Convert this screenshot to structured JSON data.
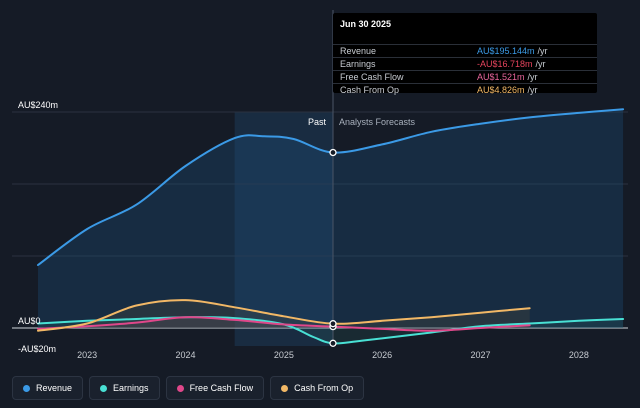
{
  "tooltip": {
    "date": "Jun 30 2025",
    "rows": [
      {
        "label": "Revenue",
        "value": "AU$195.144m",
        "unit": "/yr",
        "color": "#3b9ae6"
      },
      {
        "label": "Earnings",
        "value": "-AU$16.718m",
        "unit": "/yr",
        "color": "#e8455e"
      },
      {
        "label": "Free Cash Flow",
        "value": "AU$1.521m",
        "unit": "/yr",
        "color": "#e8659b"
      },
      {
        "label": "Cash From Op",
        "value": "AU$4.826m",
        "unit": "/yr",
        "color": "#f2b866"
      }
    ]
  },
  "legend": [
    {
      "label": "Revenue",
      "color": "#3b9ae6"
    },
    {
      "label": "Earnings",
      "color": "#49e0d4"
    },
    {
      "label": "Free Cash Flow",
      "color": "#e0478a"
    },
    {
      "label": "Cash From Op",
      "color": "#f2b866"
    }
  ],
  "chart_data": {
    "type": "line",
    "y_tick_labels": [
      "AU$240m",
      "AU$0",
      "-AU$20m"
    ],
    "ylim": [
      -20,
      240
    ],
    "xlim": [
      2022.5,
      2028.5
    ],
    "x_ticks": [
      2023,
      2024,
      2025,
      2026,
      2027,
      2028
    ],
    "past_label": "Past",
    "forecast_label": "Analysts Forecasts",
    "divider_x": 2025.5,
    "highlight_x": [
      2024.5,
      2025.5
    ],
    "series": [
      {
        "name": "Revenue",
        "color": "#3b9ae6",
        "points": [
          [
            2022.5,
            70
          ],
          [
            2023.0,
            110
          ],
          [
            2023.5,
            137
          ],
          [
            2024.0,
            180
          ],
          [
            2024.5,
            211
          ],
          [
            2024.8,
            213
          ],
          [
            2025.1,
            210
          ],
          [
            2025.5,
            195
          ],
          [
            2026.0,
            204
          ],
          [
            2026.5,
            218
          ],
          [
            2027.0,
            227
          ],
          [
            2027.5,
            234
          ],
          [
            2028.0,
            239
          ],
          [
            2028.45,
            243
          ]
        ]
      },
      {
        "name": "Earnings",
        "color": "#49e0d4",
        "points": [
          [
            2022.5,
            5
          ],
          [
            2023.0,
            8
          ],
          [
            2023.5,
            10
          ],
          [
            2024.0,
            12
          ],
          [
            2024.5,
            11
          ],
          [
            2025.0,
            4
          ],
          [
            2025.3,
            -10
          ],
          [
            2025.5,
            -17
          ],
          [
            2025.8,
            -14
          ],
          [
            2026.5,
            -5
          ],
          [
            2027.0,
            2
          ],
          [
            2027.5,
            5
          ],
          [
            2028.0,
            8
          ],
          [
            2028.45,
            10
          ]
        ]
      },
      {
        "name": "Free Cash Flow",
        "color": "#e0478a",
        "points": [
          [
            2022.5,
            -1
          ],
          [
            2023.0,
            2
          ],
          [
            2023.5,
            6
          ],
          [
            2024.0,
            12
          ],
          [
            2024.5,
            9
          ],
          [
            2025.0,
            4
          ],
          [
            2025.5,
            1.5
          ],
          [
            2026.0,
            -1
          ],
          [
            2026.5,
            -3
          ],
          [
            2027.0,
            0
          ],
          [
            2027.5,
            3
          ]
        ]
      },
      {
        "name": "Cash From Op",
        "color": "#f2b866",
        "points": [
          [
            2022.5,
            -3
          ],
          [
            2023.0,
            5
          ],
          [
            2023.5,
            25
          ],
          [
            2024.0,
            31
          ],
          [
            2024.5,
            23
          ],
          [
            2025.0,
            13
          ],
          [
            2025.5,
            4.8
          ],
          [
            2026.0,
            8
          ],
          [
            2026.5,
            12
          ],
          [
            2027.0,
            17
          ],
          [
            2027.5,
            22
          ]
        ]
      }
    ],
    "markers": [
      {
        "series": "Revenue",
        "x": 2025.5,
        "y": 195
      },
      {
        "series": "Earnings",
        "x": 2025.5,
        "y": -17
      },
      {
        "series": "Free Cash Flow",
        "x": 2025.5,
        "y": 1.5
      },
      {
        "series": "Cash From Op",
        "x": 2025.5,
        "y": 4.8
      }
    ]
  }
}
